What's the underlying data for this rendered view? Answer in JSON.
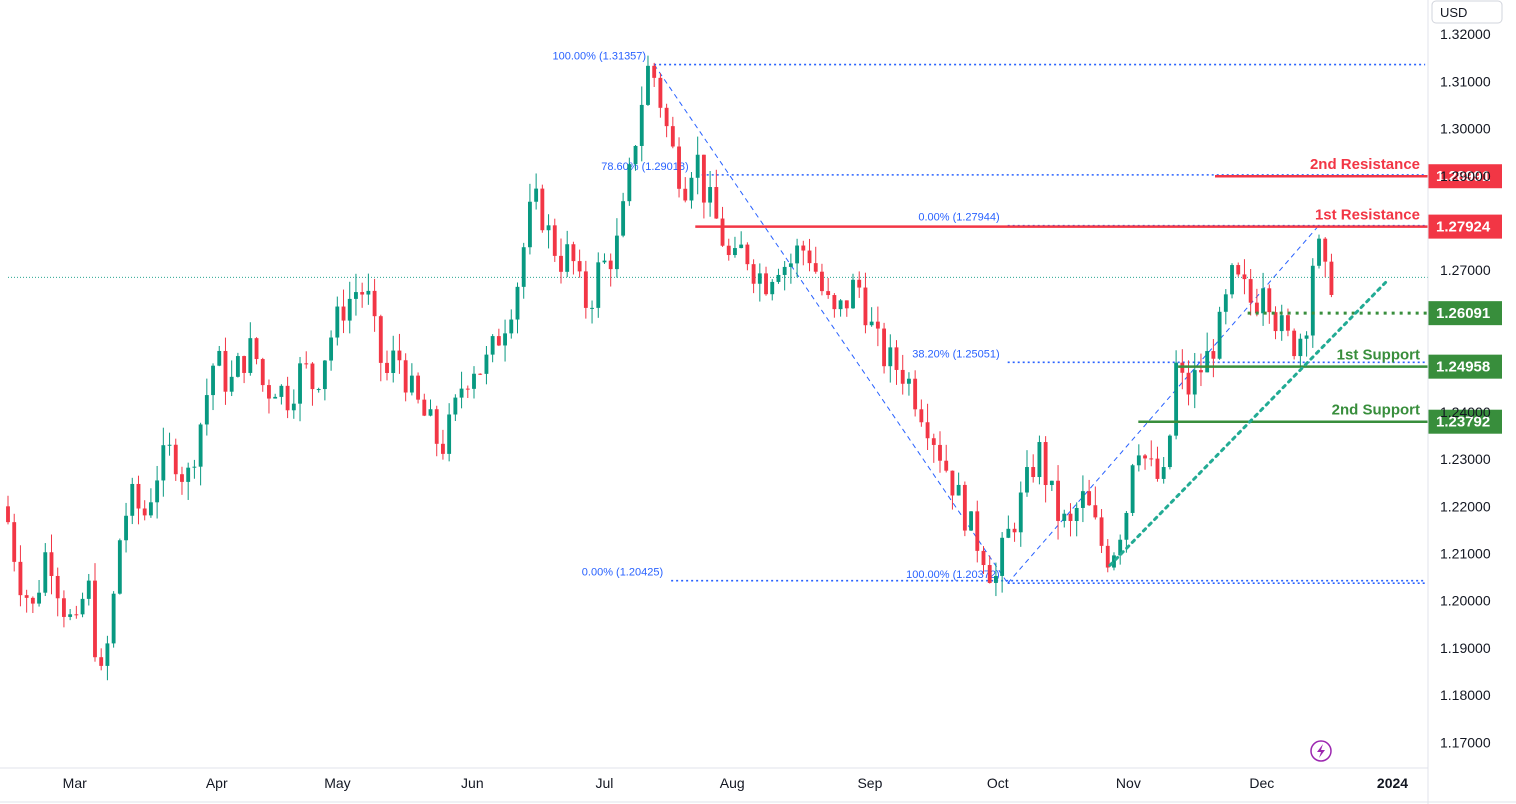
{
  "chart_data": {
    "type": "candlestick",
    "currency": "USD",
    "y_range": [
      1.165,
      1.323
    ],
    "y_ticks": [
      "1.32000",
      "1.31000",
      "1.30000",
      "1.29000",
      "1.27000",
      "1.24000",
      "1.23000",
      "1.22000",
      "1.21000",
      "1.20000",
      "1.19000",
      "1.18000",
      "1.17000"
    ],
    "x_ticks": [
      {
        "label": "Mar",
        "pos": 0.047
      },
      {
        "label": "Apr",
        "pos": 0.147
      },
      {
        "label": "May",
        "pos": 0.232
      },
      {
        "label": "Jun",
        "pos": 0.327
      },
      {
        "label": "Jul",
        "pos": 0.42
      },
      {
        "label": "Aug",
        "pos": 0.51
      },
      {
        "label": "Sep",
        "pos": 0.607
      },
      {
        "label": "Oct",
        "pos": 0.697
      },
      {
        "label": "Nov",
        "pos": 0.789
      },
      {
        "label": "Dec",
        "pos": 0.883
      },
      {
        "label": "2024",
        "pos": 0.975
      }
    ],
    "current_price": 1.2685,
    "price_path": [
      [
        0.0,
        1.22
      ],
      [
        0.01,
        1.205
      ],
      [
        0.02,
        1.198
      ],
      [
        0.03,
        1.212
      ],
      [
        0.04,
        1.2
      ],
      [
        0.05,
        1.193
      ],
      [
        0.058,
        1.205
      ],
      [
        0.063,
        1.192
      ],
      [
        0.068,
        1.183
      ],
      [
        0.075,
        1.195
      ],
      [
        0.08,
        1.212
      ],
      [
        0.088,
        1.222
      ],
      [
        0.098,
        1.218
      ],
      [
        0.108,
        1.228
      ],
      [
        0.118,
        1.232
      ],
      [
        0.128,
        1.225
      ],
      [
        0.138,
        1.238
      ],
      [
        0.148,
        1.252
      ],
      [
        0.158,
        1.245
      ],
      [
        0.165,
        1.25
      ],
      [
        0.175,
        1.254
      ],
      [
        0.183,
        1.244
      ],
      [
        0.19,
        1.246
      ],
      [
        0.2,
        1.243
      ],
      [
        0.21,
        1.25
      ],
      [
        0.218,
        1.245
      ],
      [
        0.228,
        1.255
      ],
      [
        0.238,
        1.262
      ],
      [
        0.248,
        1.266
      ],
      [
        0.255,
        1.265
      ],
      [
        0.262,
        1.254
      ],
      [
        0.268,
        1.247
      ],
      [
        0.276,
        1.253
      ],
      [
        0.285,
        1.245
      ],
      [
        0.293,
        1.24
      ],
      [
        0.3,
        1.237
      ],
      [
        0.307,
        1.232
      ],
      [
        0.315,
        1.238
      ],
      [
        0.322,
        1.246
      ],
      [
        0.33,
        1.25
      ],
      [
        0.337,
        1.249
      ],
      [
        0.345,
        1.254
      ],
      [
        0.353,
        1.26
      ],
      [
        0.36,
        1.266
      ],
      [
        0.366,
        1.276
      ],
      [
        0.372,
        1.285
      ],
      [
        0.378,
        1.282
      ],
      [
        0.385,
        1.276
      ],
      [
        0.392,
        1.272
      ],
      [
        0.398,
        1.274
      ],
      [
        0.405,
        1.266
      ],
      [
        0.411,
        1.262
      ],
      [
        0.418,
        1.27
      ],
      [
        0.425,
        1.272
      ],
      [
        0.432,
        1.276
      ],
      [
        0.44,
        1.29
      ],
      [
        0.446,
        1.302
      ],
      [
        0.452,
        1.312
      ],
      [
        0.455,
        1.3135
      ],
      [
        0.46,
        1.308
      ],
      [
        0.466,
        1.3
      ],
      [
        0.473,
        1.292
      ],
      [
        0.48,
        1.288
      ],
      [
        0.486,
        1.296
      ],
      [
        0.492,
        1.287
      ],
      [
        0.498,
        1.283
      ],
      [
        0.505,
        1.277
      ],
      [
        0.512,
        1.27
      ],
      [
        0.52,
        1.275
      ],
      [
        0.528,
        1.27
      ],
      [
        0.536,
        1.268
      ],
      [
        0.544,
        1.272
      ],
      [
        0.552,
        1.271
      ],
      [
        0.56,
        1.275
      ],
      [
        0.568,
        1.273
      ],
      [
        0.576,
        1.265
      ],
      [
        0.584,
        1.26
      ],
      [
        0.592,
        1.263
      ],
      [
        0.6,
        1.268
      ],
      [
        0.606,
        1.262
      ],
      [
        0.612,
        1.256
      ],
      [
        0.618,
        1.252
      ],
      [
        0.626,
        1.25
      ],
      [
        0.634,
        1.248
      ],
      [
        0.642,
        1.243
      ],
      [
        0.65,
        1.238
      ],
      [
        0.658,
        1.232
      ],
      [
        0.666,
        1.226
      ],
      [
        0.674,
        1.22
      ],
      [
        0.682,
        1.214
      ],
      [
        0.69,
        1.21
      ],
      [
        0.697,
        1.2037
      ],
      [
        0.704,
        1.212
      ],
      [
        0.712,
        1.218
      ],
      [
        0.72,
        1.225
      ],
      [
        0.728,
        1.232
      ],
      [
        0.735,
        1.224
      ],
      [
        0.742,
        1.218
      ],
      [
        0.75,
        1.215
      ],
      [
        0.758,
        1.222
      ],
      [
        0.765,
        1.218
      ],
      [
        0.772,
        1.212
      ],
      [
        0.778,
        1.209
      ],
      [
        0.784,
        1.214
      ],
      [
        0.79,
        1.22
      ],
      [
        0.796,
        1.236
      ],
      [
        0.803,
        1.23
      ],
      [
        0.81,
        1.226
      ],
      [
        0.818,
        1.225
      ],
      [
        0.824,
        1.25
      ],
      [
        0.832,
        1.244
      ],
      [
        0.84,
        1.248
      ],
      [
        0.848,
        1.252
      ],
      [
        0.856,
        1.258
      ],
      [
        0.864,
        1.268
      ],
      [
        0.872,
        1.266
      ],
      [
        0.88,
        1.262
      ],
      [
        0.887,
        1.27
      ],
      [
        0.893,
        1.261
      ],
      [
        0.9,
        1.257
      ],
      [
        0.906,
        1.254
      ],
      [
        0.912,
        1.256
      ],
      [
        0.918,
        1.261
      ],
      [
        0.923,
        1.279
      ],
      [
        0.928,
        1.2685
      ],
      [
        0.932,
        1.268
      ]
    ],
    "fibonacci": [
      {
        "label": "100.00% (1.31357)",
        "price": 1.31357,
        "x_from": 0.455,
        "x_to": 0.998
      },
      {
        "label": "78.60% (1.29018)",
        "price": 1.2902,
        "x_from": 0.485,
        "x_to": 0.998
      },
      {
        "label": "0.00% (1.27944)",
        "price": 1.27944,
        "x_from": 0.704,
        "x_to": 0.998
      },
      {
        "label": "38.20% (1.25051)",
        "price": 1.25051,
        "x_from": 0.704,
        "x_to": 0.998
      },
      {
        "label": "0.00% (1.20425)",
        "price": 1.20425,
        "x_from": 0.467,
        "x_to": 0.998
      },
      {
        "label": "100.00% (1.20372)",
        "price": 1.20372,
        "x_from": 0.704,
        "x_to": 0.998
      }
    ],
    "levels": [
      {
        "name": "2nd Resistance",
        "price": 1.28991,
        "price_label": "1.28991",
        "color": "#f23645",
        "x_from": 0.85,
        "style": "solid"
      },
      {
        "name": "1st Resistance",
        "price": 1.27924,
        "price_label": "1.27924",
        "color": "#f23645",
        "x_from": 0.484,
        "style": "solid"
      },
      {
        "name": "",
        "price": 1.26091,
        "price_label": "1.26091",
        "color": "#388e3c",
        "x_from": 0.873,
        "style": "dotted"
      },
      {
        "name": "1st Support",
        "price": 1.24958,
        "price_label": "1.24958",
        "color": "#388e3c",
        "x_from": 0.824,
        "style": "solid"
      },
      {
        "name": "2nd Support",
        "price": 1.23792,
        "price_label": "1.23792",
        "color": "#388e3c",
        "x_from": 0.796,
        "style": "solid"
      }
    ],
    "trendline": {
      "from": [
        0.776,
        1.2075
      ],
      "to": [
        0.972,
        1.268
      ],
      "color": "#22ab94"
    },
    "fib_diagonals": [
      {
        "from": [
          0.455,
          1.31357
        ],
        "to": [
          0.704,
          1.20372
        ]
      },
      {
        "from": [
          0.704,
          1.20372
        ],
        "to": [
          0.923,
          1.27944
        ]
      }
    ],
    "colors": {
      "up": "#089981",
      "down": "#f23645",
      "fib": "#2962ff",
      "grid": "#e0e3eb"
    }
  },
  "ui": {
    "lightning_icon": "lightning-icon"
  }
}
